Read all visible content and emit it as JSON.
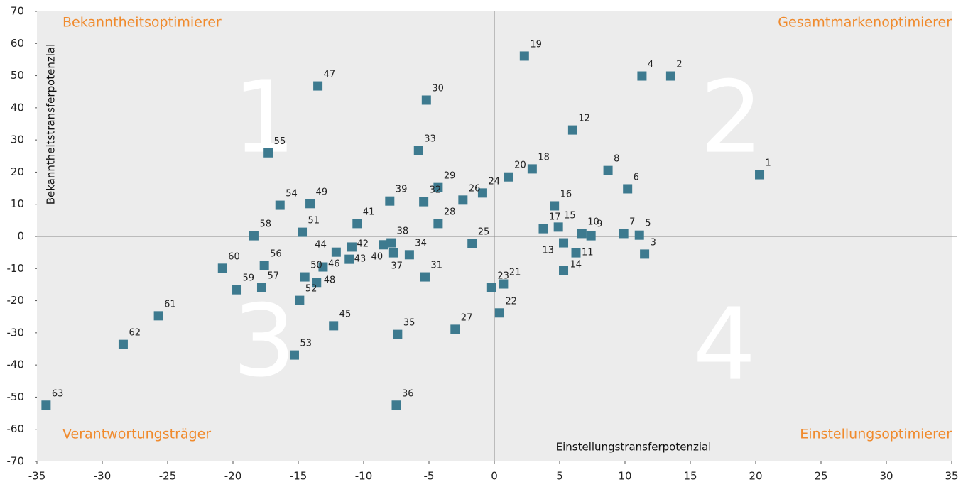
{
  "chart_data": {
    "type": "scatter",
    "x_label": "Einstellungstransferpotenzial",
    "y_label": "Bekanntheitstransferpotenzial",
    "annotations": [
      "Bekanntheitsoptimierer",
      "Gesamtmarkenoptimierer",
      "Verantwortungsträger",
      "Einstellungsoptimierer"
    ],
    "quadrant_numbers": [
      "1",
      "2",
      "3",
      "4"
    ],
    "color": "#3d7a8f",
    "labels": [
      "1",
      "2",
      "3",
      "4",
      "5",
      "6",
      "7",
      "8",
      "9",
      "10",
      "11",
      "12",
      "13",
      "14",
      "15",
      "16",
      "17",
      "18",
      "19",
      "20",
      "21",
      "22",
      "23",
      "24",
      "25",
      "26",
      "27",
      "28",
      "29",
      "30",
      "31",
      "32",
      "33",
      "34",
      "35",
      "36",
      "37",
      "38",
      "39",
      "40",
      "41",
      "42",
      "43",
      "44",
      "45",
      "46",
      "47",
      "48",
      "49",
      "50",
      "51",
      "52",
      "53",
      "54",
      "55",
      "56",
      "57",
      "58",
      "59",
      "60",
      "61",
      "62",
      "63"
    ],
    "x": [
      20.3,
      13.5,
      11.5,
      11.3,
      11.1,
      10.2,
      9.9,
      8.7,
      7.4,
      6.7,
      6.25,
      6.0,
      5.3,
      5.3,
      4.9,
      4.6,
      3.75,
      2.9,
      2.3,
      1.1,
      0.7,
      0.4,
      -0.2,
      -0.9,
      -1.7,
      -2.4,
      -3.0,
      -4.3,
      -4.3,
      -5.2,
      -5.3,
      -5.4,
      -5.8,
      -6.5,
      -7.4,
      -7.5,
      -7.7,
      -7.9,
      -8.0,
      -8.5,
      -10.5,
      -10.9,
      -11.1,
      -12.1,
      -12.3,
      -13.1,
      -13.5,
      -13.6,
      -14.1,
      -14.5,
      -14.7,
      -14.9,
      -15.3,
      -16.4,
      -17.3,
      -17.6,
      -17.8,
      -18.4,
      -19.7,
      -20.8,
      -25.7,
      -28.4,
      -34.3
    ],
    "values": [
      19.2,
      49.9,
      -5.5,
      49.9,
      0.4,
      14.8,
      0.9,
      20.5,
      0.2,
      0.9,
      -5.1,
      33.1,
      -2.0,
      -10.6,
      2.9,
      9.5,
      2.4,
      21.0,
      56.1,
      18.5,
      -14.8,
      -23.8,
      -15.9,
      13.5,
      -2.2,
      11.3,
      -28.9,
      4.0,
      15.2,
      42.4,
      -12.6,
      10.8,
      26.7,
      -5.7,
      -30.5,
      -52.5,
      -5.1,
      -2.0,
      11.0,
      -2.6,
      4.0,
      -3.3,
      -7.1,
      -4.9,
      -27.8,
      -9.5,
      46.8,
      -14.3,
      10.2,
      -12.6,
      1.3,
      -19.9,
      -36.9,
      9.7,
      26.0,
      -9.1,
      -15.9,
      0.2,
      -16.6,
      -9.9,
      -24.7,
      -33.6,
      -52.5
    ],
    "xlim": [
      -35,
      35
    ],
    "xticks": [
      -35,
      -30,
      -25,
      -20,
      -15,
      -10,
      -5,
      0,
      5,
      10,
      15,
      20,
      25,
      30,
      35
    ],
    "ylim": [
      -70,
      70
    ],
    "yticks": [
      -70,
      -60,
      -50,
      -40,
      -30,
      -20,
      -10,
      0,
      10,
      20,
      30,
      40,
      50,
      60,
      70
    ]
  }
}
